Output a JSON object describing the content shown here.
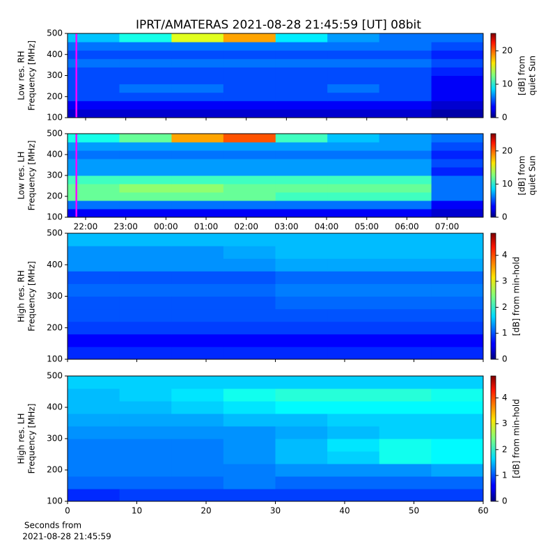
{
  "title": "IPRT/AMATERAS 2021-08-28 21:45:59 [UT]   08bit",
  "xlabel": [
    "Seconds from",
    "2021-08-28 21:45:59"
  ],
  "chart_data": [
    {
      "type": "heatmap",
      "ylabel": [
        "Low res. RH",
        "Frequency [MHz]"
      ],
      "colorbar_label": [
        "[dB] from",
        "quiet Sun"
      ],
      "colormap": "jet",
      "xlim": [
        21.55,
        31.9
      ],
      "xticks": [
        {
          "value": 22,
          "label": "22:00"
        },
        {
          "value": 23,
          "label": "23:00"
        },
        {
          "value": 24,
          "label": "00:00"
        },
        {
          "value": 25,
          "label": "01:00"
        },
        {
          "value": 26,
          "label": "02:00"
        },
        {
          "value": 27,
          "label": "03:00"
        },
        {
          "value": 28,
          "label": "04:00"
        },
        {
          "value": 29,
          "label": "05:00"
        },
        {
          "value": 30,
          "label": "06:00"
        },
        {
          "value": 31,
          "label": "07:00"
        }
      ],
      "show_xtick_labels": false,
      "ylim": [
        100,
        500
      ],
      "yticks": [
        100,
        200,
        300,
        400,
        500
      ],
      "zlim": [
        0,
        25.2
      ],
      "zticks": [
        0,
        10,
        20
      ],
      "marker_line": {
        "x": 21.77,
        "color": "#ff00ff"
      },
      "xbins": [
        21.55,
        22.84,
        24.14,
        25.43,
        26.73,
        28.02,
        29.31,
        30.61,
        31.9
      ],
      "ybins": [
        100,
        140,
        180,
        220,
        260,
        300,
        340,
        380,
        420,
        460,
        500
      ],
      "z": [
        [
          2,
          2,
          2,
          2,
          2,
          2,
          2,
          1
        ],
        [
          3,
          3,
          3,
          3,
          3,
          3,
          3,
          2
        ],
        [
          5,
          5,
          5,
          5,
          5,
          5,
          5,
          3
        ],
        [
          5,
          6,
          6,
          5,
          5,
          6,
          5,
          3
        ],
        [
          5,
          5,
          5,
          5,
          5,
          5,
          5,
          3
        ],
        [
          5,
          5,
          5,
          5,
          5,
          5,
          5,
          4
        ],
        [
          6,
          6,
          6,
          6,
          6,
          6,
          6,
          5
        ],
        [
          5,
          5,
          5,
          5,
          5,
          5,
          5,
          4
        ],
        [
          6,
          6,
          6,
          6,
          6,
          6,
          6,
          5
        ],
        [
          8,
          10,
          15,
          18,
          9,
          7,
          6,
          6
        ]
      ]
    },
    {
      "type": "heatmap",
      "ylabel": [
        "Low res. LH",
        "Frequency [MHz]"
      ],
      "colorbar_label": [
        "[dB] from",
        "quiet Sun"
      ],
      "colormap": "jet",
      "xlim": [
        21.55,
        31.9
      ],
      "xticks": [
        {
          "value": 22,
          "label": "22:00"
        },
        {
          "value": 23,
          "label": "23:00"
        },
        {
          "value": 24,
          "label": "00:00"
        },
        {
          "value": 25,
          "label": "01:00"
        },
        {
          "value": 26,
          "label": "02:00"
        },
        {
          "value": 27,
          "label": "03:00"
        },
        {
          "value": 28,
          "label": "04:00"
        },
        {
          "value": 29,
          "label": "05:00"
        },
        {
          "value": 30,
          "label": "06:00"
        },
        {
          "value": 31,
          "label": "07:00"
        }
      ],
      "show_xtick_labels": true,
      "ylim": [
        100,
        500
      ],
      "yticks": [
        100,
        200,
        300,
        400,
        500
      ],
      "zlim": [
        0,
        25.2
      ],
      "zticks": [
        0,
        10,
        20
      ],
      "marker_line": {
        "x": 21.77,
        "color": "#ff00ff"
      },
      "xbins": [
        21.55,
        22.84,
        24.14,
        25.43,
        26.73,
        28.02,
        29.31,
        30.61,
        31.9
      ],
      "ybins": [
        100,
        140,
        180,
        220,
        260,
        300,
        340,
        380,
        420,
        460,
        500
      ],
      "z": [
        [
          3,
          3,
          3,
          3,
          3,
          3,
          3,
          2
        ],
        [
          6,
          6,
          6,
          6,
          6,
          6,
          6,
          3
        ],
        [
          12,
          12,
          12,
          12,
          11,
          11,
          11,
          6
        ],
        [
          12,
          13,
          13,
          12,
          12,
          12,
          12,
          6
        ],
        [
          11,
          11,
          11,
          11,
          11,
          11,
          11,
          6
        ],
        [
          7,
          7,
          7,
          7,
          7,
          7,
          7,
          4
        ],
        [
          7,
          7,
          7,
          7,
          7,
          7,
          7,
          5
        ],
        [
          6,
          6,
          6,
          6,
          6,
          6,
          6,
          4
        ],
        [
          7,
          7,
          7,
          7,
          7,
          7,
          7,
          5
        ],
        [
          10,
          12,
          18,
          20,
          11,
          8,
          7,
          6
        ]
      ]
    },
    {
      "type": "heatmap",
      "ylabel": [
        "High res. RH",
        "Frequency [MHz]"
      ],
      "colorbar_label": [
        "[dB] from min-hold"
      ],
      "colormap": "jet",
      "xlim": [
        0,
        60
      ],
      "xticks": [
        0,
        10,
        20,
        30,
        40,
        50,
        60
      ],
      "show_xtick_labels": false,
      "ylim": [
        100,
        500
      ],
      "yticks": [
        100,
        200,
        300,
        400,
        500
      ],
      "zlim": [
        0,
        4.85
      ],
      "zticks": [
        0,
        1,
        2,
        3,
        4
      ],
      "xbins": [
        0,
        7.5,
        15,
        22.5,
        30,
        37.5,
        45,
        52.5,
        60
      ],
      "ybins": [
        100,
        140,
        180,
        220,
        260,
        300,
        340,
        380,
        420,
        460,
        500
      ],
      "z": [
        [
          0.8,
          0.8,
          0.8,
          0.8,
          0.8,
          0.8,
          0.8,
          0.8
        ],
        [
          0.6,
          0.6,
          0.6,
          0.6,
          0.6,
          0.6,
          0.6,
          0.6
        ],
        [
          0.9,
          0.9,
          0.9,
          0.9,
          0.9,
          0.9,
          0.9,
          0.9
        ],
        [
          1.0,
          1.0,
          1.0,
          1.0,
          1.0,
          1.0,
          1.0,
          1.0
        ],
        [
          1.0,
          1.0,
          1.0,
          1.0,
          1.1,
          1.1,
          1.1,
          1.1
        ],
        [
          1.1,
          1.1,
          1.1,
          1.1,
          1.2,
          1.2,
          1.2,
          1.2
        ],
        [
          1.0,
          1.0,
          1.0,
          1.0,
          1.1,
          1.1,
          1.1,
          1.1
        ],
        [
          1.3,
          1.3,
          1.3,
          1.3,
          1.4,
          1.4,
          1.4,
          1.4
        ],
        [
          1.3,
          1.3,
          1.3,
          1.4,
          1.5,
          1.5,
          1.5,
          1.5
        ],
        [
          1.5,
          1.5,
          1.5,
          1.5,
          1.5,
          1.5,
          1.5,
          1.5
        ]
      ]
    },
    {
      "type": "heatmap",
      "ylabel": [
        "High res. LH",
        "Frequency [MHz]"
      ],
      "colorbar_label": [
        "[dB] from min-hold"
      ],
      "colormap": "jet",
      "xlim": [
        0,
        60
      ],
      "xticks": [
        0,
        10,
        20,
        30,
        40,
        50,
        60
      ],
      "show_xtick_labels": true,
      "ylim": [
        100,
        500
      ],
      "yticks": [
        100,
        200,
        300,
        400,
        500
      ],
      "zlim": [
        0,
        4.85
      ],
      "zticks": [
        0,
        1,
        2,
        3,
        4
      ],
      "xbins": [
        0,
        7.5,
        15,
        22.5,
        30,
        37.5,
        45,
        52.5,
        60
      ],
      "ybins": [
        100,
        140,
        180,
        220,
        260,
        300,
        340,
        380,
        420,
        460,
        500
      ],
      "z": [
        [
          0.8,
          0.9,
          0.9,
          0.9,
          0.9,
          0.9,
          0.9,
          0.9
        ],
        [
          1.1,
          1.1,
          1.1,
          1.2,
          1.1,
          1.1,
          1.1,
          1.1
        ],
        [
          1.2,
          1.2,
          1.2,
          1.2,
          1.3,
          1.3,
          1.3,
          1.4
        ],
        [
          1.2,
          1.2,
          1.2,
          1.3,
          1.5,
          1.6,
          1.9,
          1.8
        ],
        [
          1.2,
          1.2,
          1.2,
          1.3,
          1.5,
          1.7,
          1.9,
          1.8
        ],
        [
          1.3,
          1.3,
          1.3,
          1.3,
          1.4,
          1.5,
          1.6,
          1.6
        ],
        [
          1.4,
          1.4,
          1.4,
          1.5,
          1.5,
          1.6,
          1.6,
          1.6
        ],
        [
          1.5,
          1.5,
          1.6,
          1.7,
          1.8,
          1.8,
          1.8,
          1.8
        ],
        [
          1.5,
          1.6,
          1.7,
          1.9,
          2.0,
          2.0,
          2.0,
          1.9
        ],
        [
          1.6,
          1.6,
          1.6,
          1.6,
          1.6,
          1.6,
          1.6,
          1.6
        ]
      ]
    }
  ]
}
